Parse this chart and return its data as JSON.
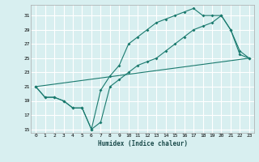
{
  "xlabel": "Humidex (Indice chaleur)",
  "bg_color": "#d8eff0",
  "grid_color": "#ffffff",
  "line_color": "#1a7a6e",
  "xlim": [
    -0.5,
    23.5
  ],
  "ylim": [
    14.5,
    32.5
  ],
  "yticks": [
    15,
    17,
    19,
    21,
    23,
    25,
    27,
    29,
    31
  ],
  "xticks": [
    0,
    1,
    2,
    3,
    4,
    5,
    6,
    7,
    8,
    9,
    10,
    11,
    12,
    13,
    14,
    15,
    16,
    17,
    18,
    19,
    20,
    21,
    22,
    23
  ],
  "line1_x": [
    0,
    1,
    2,
    3,
    4,
    5,
    6,
    7,
    8,
    9,
    10,
    11,
    12,
    13,
    14,
    15,
    16,
    17,
    18,
    19,
    20,
    21,
    22,
    23
  ],
  "line1_y": [
    21,
    19.5,
    19.5,
    19,
    18,
    18,
    15,
    16,
    21,
    22,
    23,
    24,
    24.5,
    25,
    26,
    27,
    28,
    29,
    29.5,
    30,
    31,
    29,
    25.5,
    25
  ],
  "line2_x": [
    0,
    1,
    2,
    3,
    4,
    5,
    6,
    7,
    8,
    9,
    10,
    11,
    12,
    13,
    14,
    15,
    16,
    17,
    18,
    19,
    20,
    21,
    22,
    23
  ],
  "line2_y": [
    21,
    19.5,
    19.5,
    19,
    18,
    18,
    15,
    20.5,
    22.5,
    24,
    27,
    28,
    29,
    30,
    30.5,
    31,
    31.5,
    32,
    31,
    31,
    31,
    29,
    26,
    25
  ],
  "line3_x": [
    0,
    23
  ],
  "line3_y": [
    21,
    25
  ]
}
